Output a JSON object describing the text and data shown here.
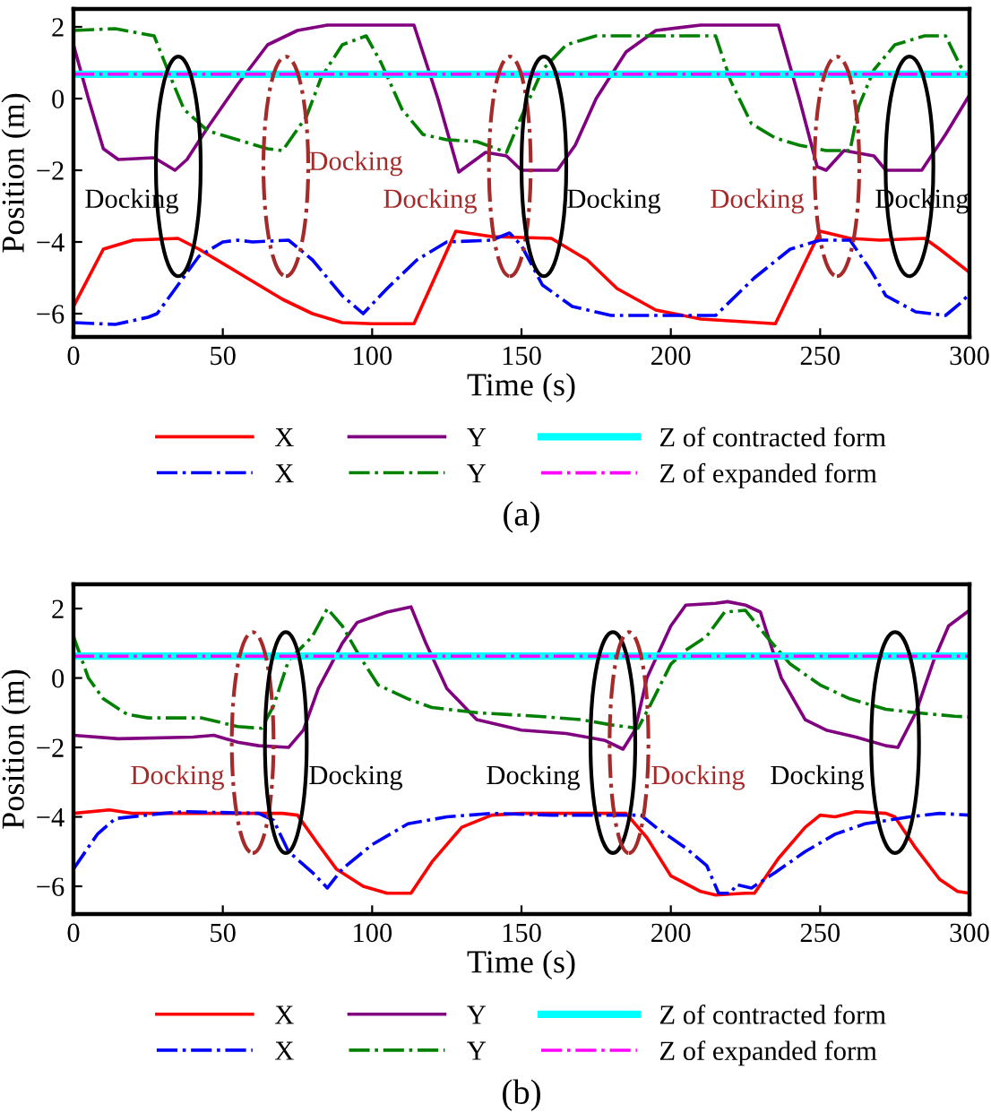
{
  "chart_data": [
    {
      "type": "line",
      "title": "(a)",
      "xlabel": "Time (s)",
      "ylabel": "Position (m)",
      "xlim": [
        0,
        300
      ],
      "xticks": [
        0,
        50,
        100,
        150,
        200,
        250,
        300
      ],
      "ylim": [
        -6.65,
        2.5
      ],
      "yticks": [
        {
          "value": -6,
          "label": "−6"
        },
        {
          "value": -4,
          "label": "−4"
        },
        {
          "value": -2,
          "label": "−2"
        },
        {
          "value": 0,
          "label": "0"
        },
        {
          "value": 2,
          "label": "2"
        }
      ],
      "grid": false,
      "legend": "bottom",
      "marker": "none",
      "series": [
        {
          "name": "X",
          "color": "#ff0000",
          "line_style": "solid",
          "x": [
            0,
            10,
            20,
            35,
            42,
            58,
            70,
            80,
            90,
            100,
            114,
            128,
            140,
            160,
            172,
            182,
            195,
            210,
            235,
            250,
            260,
            270,
            285,
            290,
            300
          ],
          "values": [
            -5.8,
            -4.2,
            -3.95,
            -3.9,
            -4.2,
            -5.0,
            -5.6,
            -6.0,
            -6.25,
            -6.28,
            -6.28,
            -3.7,
            -3.85,
            -3.9,
            -4.5,
            -5.3,
            -5.9,
            -6.15,
            -6.28,
            -3.7,
            -3.9,
            -3.95,
            -3.9,
            -4.2,
            -4.85
          ]
        },
        {
          "name": "X",
          "color": "#0000ff",
          "line_style": "dashdot",
          "x": [
            0,
            14,
            25,
            28,
            35,
            42,
            50,
            55,
            60,
            72,
            80,
            90,
            97,
            105,
            115,
            125,
            140,
            146,
            150,
            157,
            167,
            180,
            215,
            228,
            240,
            250,
            260,
            267,
            272,
            282,
            292,
            297,
            300
          ],
          "values": [
            -6.25,
            -6.3,
            -6.1,
            -6.0,
            -5.2,
            -4.4,
            -4.0,
            -3.95,
            -4.0,
            -3.95,
            -4.5,
            -5.5,
            -6.0,
            -5.3,
            -4.5,
            -4.0,
            -3.95,
            -3.75,
            -4.1,
            -5.2,
            -5.8,
            -6.05,
            -6.05,
            -5.0,
            -4.2,
            -3.95,
            -3.95,
            -4.8,
            -5.5,
            -5.95,
            -6.05,
            -5.7,
            -5.45
          ]
        },
        {
          "name": "Y",
          "color": "#800080",
          "line_style": "solid",
          "x": [
            0,
            5,
            10,
            15,
            27,
            34,
            38,
            45,
            55,
            65,
            75,
            85,
            114,
            122,
            129,
            138,
            145,
            150,
            162,
            168,
            175,
            185,
            195,
            210,
            236,
            243,
            249,
            252,
            258,
            268,
            272,
            284,
            292,
            300
          ],
          "values": [
            1.5,
            0,
            -1.4,
            -1.7,
            -1.65,
            -2.0,
            -1.7,
            -0.8,
            0.4,
            1.5,
            1.9,
            2.05,
            2.05,
            0,
            -2.05,
            -1.5,
            -1.6,
            -2.0,
            -2.0,
            -1.3,
            0,
            1.3,
            1.9,
            2.05,
            2.05,
            0,
            -1.9,
            -2.0,
            -1.45,
            -1.6,
            -2.0,
            -2.0,
            -1.0,
            0.1
          ]
        },
        {
          "name": "Y",
          "color": "#008000",
          "line_style": "dashdot",
          "x": [
            0,
            14,
            27,
            33,
            37,
            45,
            55,
            65,
            70,
            78,
            83,
            90,
            98,
            103,
            110,
            117,
            125,
            135,
            145,
            150,
            157,
            165,
            175,
            215,
            220,
            227,
            235,
            243,
            252,
            260,
            263,
            268,
            275,
            285,
            292,
            297,
            300
          ],
          "values": [
            1.9,
            1.95,
            1.75,
            0.5,
            -0.3,
            -0.9,
            -1.15,
            -1.4,
            -1.45,
            -0.5,
            0.6,
            1.5,
            1.75,
            1.0,
            -0.3,
            -1.0,
            -1.15,
            -1.2,
            -1.5,
            -0.5,
            0.8,
            1.5,
            1.75,
            1.75,
            0.5,
            -0.7,
            -1.1,
            -1.3,
            -1.45,
            -1.45,
            -0.2,
            0.8,
            1.5,
            1.75,
            1.75,
            0.9,
            0.6
          ]
        },
        {
          "name": "Z of contracted form",
          "color": "#00ffff",
          "line_style": "solid",
          "x": [
            0,
            300
          ],
          "values": [
            0.68,
            0.68
          ]
        },
        {
          "name": "Z of expanded form",
          "color": "#ff00ff",
          "line_style": "dashdot",
          "x": [
            0,
            300
          ],
          "values": [
            0.68,
            0.68
          ]
        }
      ],
      "annotations": [
        "Docking",
        "Docking",
        "Docking",
        "Docking",
        "Docking",
        "Docking"
      ]
    },
    {
      "type": "line",
      "title": "(b)",
      "xlabel": "Time (s)",
      "ylabel": "Position (m)",
      "xlim": [
        0,
        300
      ],
      "xticks": [
        0,
        50,
        100,
        150,
        200,
        250,
        300
      ],
      "ylim": [
        -6.8,
        2.7
      ],
      "yticks": [
        {
          "value": -6,
          "label": "−6"
        },
        {
          "value": -4,
          "label": "−4"
        },
        {
          "value": -2,
          "label": "−2"
        },
        {
          "value": 0,
          "label": "0"
        },
        {
          "value": 2,
          "label": "2"
        }
      ],
      "grid": false,
      "legend": "bottom",
      "marker": "none",
      "series": [
        {
          "name": "X",
          "color": "#ff0000",
          "line_style": "solid",
          "x": [
            0,
            12,
            20,
            70,
            75,
            82,
            88,
            97,
            105,
            113,
            120,
            130,
            140,
            150,
            185,
            192,
            200,
            210,
            215,
            225,
            228,
            236,
            245,
            250,
            255,
            262,
            272,
            275,
            282,
            290,
            296,
            300
          ],
          "values": [
            -3.9,
            -3.8,
            -3.9,
            -3.9,
            -3.95,
            -4.8,
            -5.5,
            -6.0,
            -6.2,
            -6.2,
            -5.3,
            -4.3,
            -3.95,
            -3.9,
            -3.9,
            -4.6,
            -5.7,
            -6.15,
            -6.25,
            -6.2,
            -6.2,
            -5.2,
            -4.3,
            -3.95,
            -4.0,
            -3.85,
            -3.9,
            -4.0,
            -4.9,
            -5.8,
            -6.15,
            -6.2
          ]
        },
        {
          "name": "X",
          "color": "#0000ff",
          "line_style": "dashdot",
          "x": [
            0,
            8,
            14,
            30,
            37,
            62,
            67,
            72,
            80,
            85,
            90,
            100,
            112,
            125,
            140,
            160,
            190,
            195,
            205,
            212,
            216,
            220,
            222,
            227,
            235,
            245,
            255,
            265,
            280,
            290,
            300
          ],
          "values": [
            -5.5,
            -4.5,
            -4.05,
            -3.9,
            -3.85,
            -3.9,
            -4.1,
            -5.0,
            -5.6,
            -6.05,
            -5.5,
            -4.8,
            -4.2,
            -4.0,
            -3.9,
            -3.95,
            -3.95,
            -4.3,
            -4.9,
            -5.4,
            -6.2,
            -6.2,
            -5.95,
            -6.05,
            -5.6,
            -5.0,
            -4.5,
            -4.2,
            -4.0,
            -3.9,
            -3.95
          ]
        },
        {
          "name": "Y",
          "color": "#800080",
          "line_style": "solid",
          "x": [
            0,
            15,
            40,
            47,
            55,
            62,
            72,
            77,
            82,
            90,
            95,
            105,
            113,
            118,
            125,
            135,
            150,
            165,
            178,
            184,
            188,
            192,
            200,
            205,
            215,
            219,
            225,
            230,
            237,
            245,
            252,
            262,
            272,
            276,
            282,
            288,
            293,
            300
          ],
          "values": [
            -1.65,
            -1.75,
            -1.7,
            -1.65,
            -1.85,
            -1.95,
            -2.0,
            -1.5,
            -0.3,
            1.0,
            1.6,
            1.9,
            2.05,
            1.0,
            -0.3,
            -1.2,
            -1.5,
            -1.6,
            -1.8,
            -2.05,
            -1.5,
            0,
            1.5,
            2.1,
            2.15,
            2.2,
            2.1,
            1.9,
            0,
            -1.2,
            -1.5,
            -1.7,
            -1.95,
            -2.0,
            -1.0,
            0.5,
            1.5,
            1.95
          ]
        },
        {
          "name": "Y",
          "color": "#008000",
          "line_style": "dashdot",
          "x": [
            0,
            5,
            10,
            18,
            25,
            43,
            55,
            63,
            67,
            72,
            80,
            85,
            90,
            96,
            102,
            112,
            120,
            135,
            155,
            170,
            180,
            189,
            193,
            200,
            205,
            212,
            218,
            225,
            232,
            240,
            250,
            260,
            272,
            282,
            295,
            300
          ],
          "values": [
            1.2,
            0,
            -0.6,
            -1.05,
            -1.15,
            -1.15,
            -1.4,
            -1.45,
            -0.8,
            0.5,
            1.2,
            2.0,
            1.5,
            0.6,
            -0.2,
            -0.6,
            -0.85,
            -1.0,
            -1.1,
            -1.2,
            -1.35,
            -1.45,
            -0.8,
            0.4,
            0.8,
            1.2,
            1.9,
            1.95,
            1.2,
            0.4,
            -0.2,
            -0.6,
            -0.9,
            -1.0,
            -1.1,
            -1.12
          ]
        },
        {
          "name": "Z of contracted form",
          "color": "#00ffff",
          "line_style": "solid",
          "x": [
            0,
            300
          ],
          "values": [
            0.63,
            0.63
          ]
        },
        {
          "name": "Z of expanded form",
          "color": "#ff00ff",
          "line_style": "dashdot",
          "x": [
            0,
            300
          ],
          "values": [
            0.63,
            0.63
          ]
        }
      ],
      "annotations": [
        "Docking",
        "Docking",
        "Docking",
        "Docking",
        "Docking"
      ]
    }
  ]
}
